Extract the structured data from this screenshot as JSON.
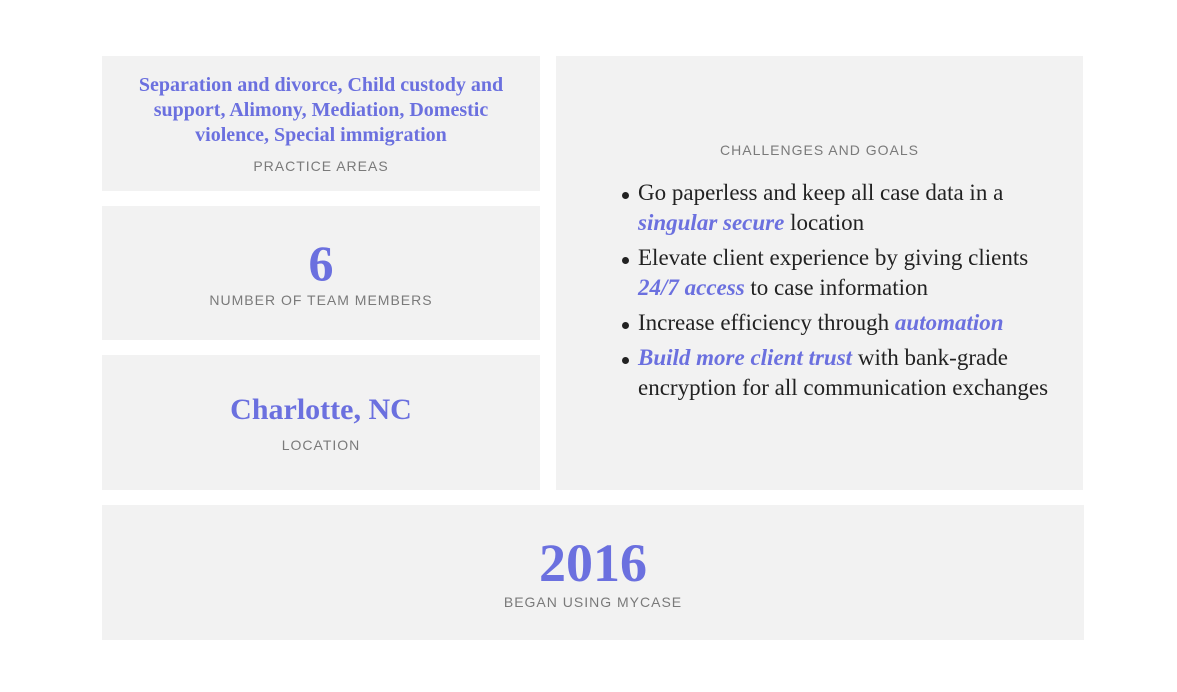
{
  "colors": {
    "accent": "#6b70df",
    "panel": "#f2f2f2",
    "label": "#7a7a7a",
    "text": "#222222"
  },
  "practice_areas": {
    "value": "Separation and divorce, Child custody and support, Alimony, Mediation, Domestic violence, Special immigration",
    "label": "PRACTICE AREAS"
  },
  "team": {
    "value": "6",
    "label": "NUMBER OF TEAM MEMBERS"
  },
  "location": {
    "value": "Charlotte, NC",
    "label": "LOCATION"
  },
  "challenges": {
    "label": "CHALLENGES AND GOALS",
    "items": [
      {
        "segments": [
          {
            "text": "Go paperless and keep all case data in a "
          },
          {
            "text": "singular secure",
            "em": true
          },
          {
            "text": " location"
          }
        ]
      },
      {
        "segments": [
          {
            "text": "Elevate client experience by giving clients "
          },
          {
            "text": "24/7 access",
            "em": true
          },
          {
            "text": " to case information"
          }
        ]
      },
      {
        "segments": [
          {
            "text": "Increase efficiency through "
          },
          {
            "text": "automation",
            "em": true
          },
          {
            "text": ""
          }
        ]
      },
      {
        "segments": [
          {
            "text": ""
          },
          {
            "text": "Build more client trust",
            "em": true
          },
          {
            "text": " with bank-grade encryption for all communication exchanges"
          }
        ]
      }
    ]
  },
  "since": {
    "value": "2016",
    "label": "BEGAN USING MYCASE"
  }
}
